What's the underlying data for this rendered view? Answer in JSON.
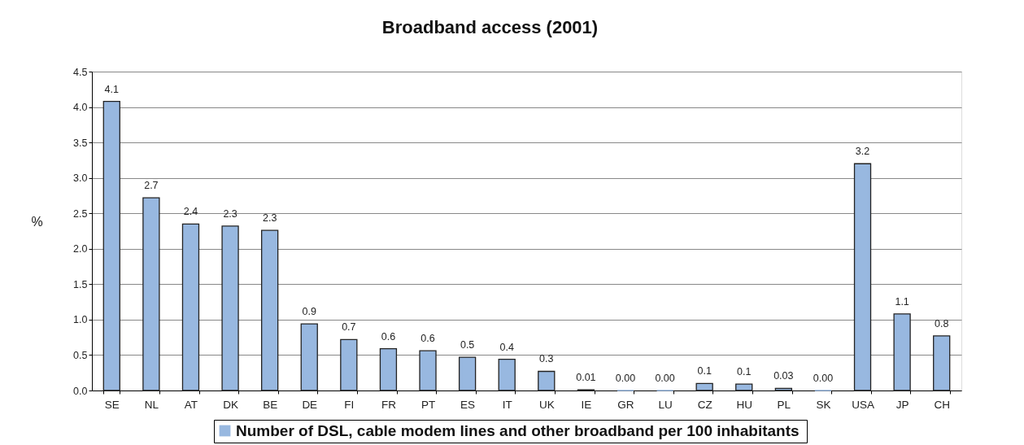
{
  "chart_data": {
    "type": "bar",
    "title": "Broadband access (2001)",
    "ylabel": "%",
    "categories": [
      "SE",
      "NL",
      "AT",
      "DK",
      "BE",
      "DE",
      "FI",
      "FR",
      "PT",
      "ES",
      "IT",
      "UK",
      "IE",
      "GR",
      "LU",
      "CZ",
      "HU",
      "PL",
      "SK",
      "USA",
      "JP",
      "CH"
    ],
    "series": [
      {
        "name": "Number of DSL, cable modem lines  and other broadband per 100 inhabitants",
        "color": "#98b8e0",
        "values": [
          4.08,
          2.72,
          2.35,
          2.32,
          2.26,
          0.94,
          0.72,
          0.59,
          0.56,
          0.47,
          0.44,
          0.27,
          0.01,
          0.0,
          0.0,
          0.1,
          0.09,
          0.03,
          0.0,
          3.2,
          1.08,
          0.77
        ],
        "value_labels": [
          "4.1",
          "2.7",
          "2.4",
          "2.3",
          "2.3",
          "0.9",
          "0.7",
          "0.6",
          "0.6",
          "0.5",
          "0.4",
          "0.3",
          "0.01",
          "0.00",
          "0.00",
          "0.1",
          "0.1",
          "0.03",
          "0.00",
          "3.2",
          "1.1",
          "0.8"
        ]
      }
    ],
    "ylim": [
      0,
      4.5
    ],
    "yticks": [
      {
        "value": 0,
        "label": "0.0"
      },
      0.5,
      {
        "value": 1,
        "label": "1.0"
      },
      1.5,
      {
        "value": 2,
        "label": "2.0"
      },
      2.5,
      {
        "value": 3,
        "label": "3.0"
      },
      3.5,
      {
        "value": 4,
        "label": "4.0"
      },
      4.5
    ],
    "grid": "y",
    "legend": "bottom"
  }
}
